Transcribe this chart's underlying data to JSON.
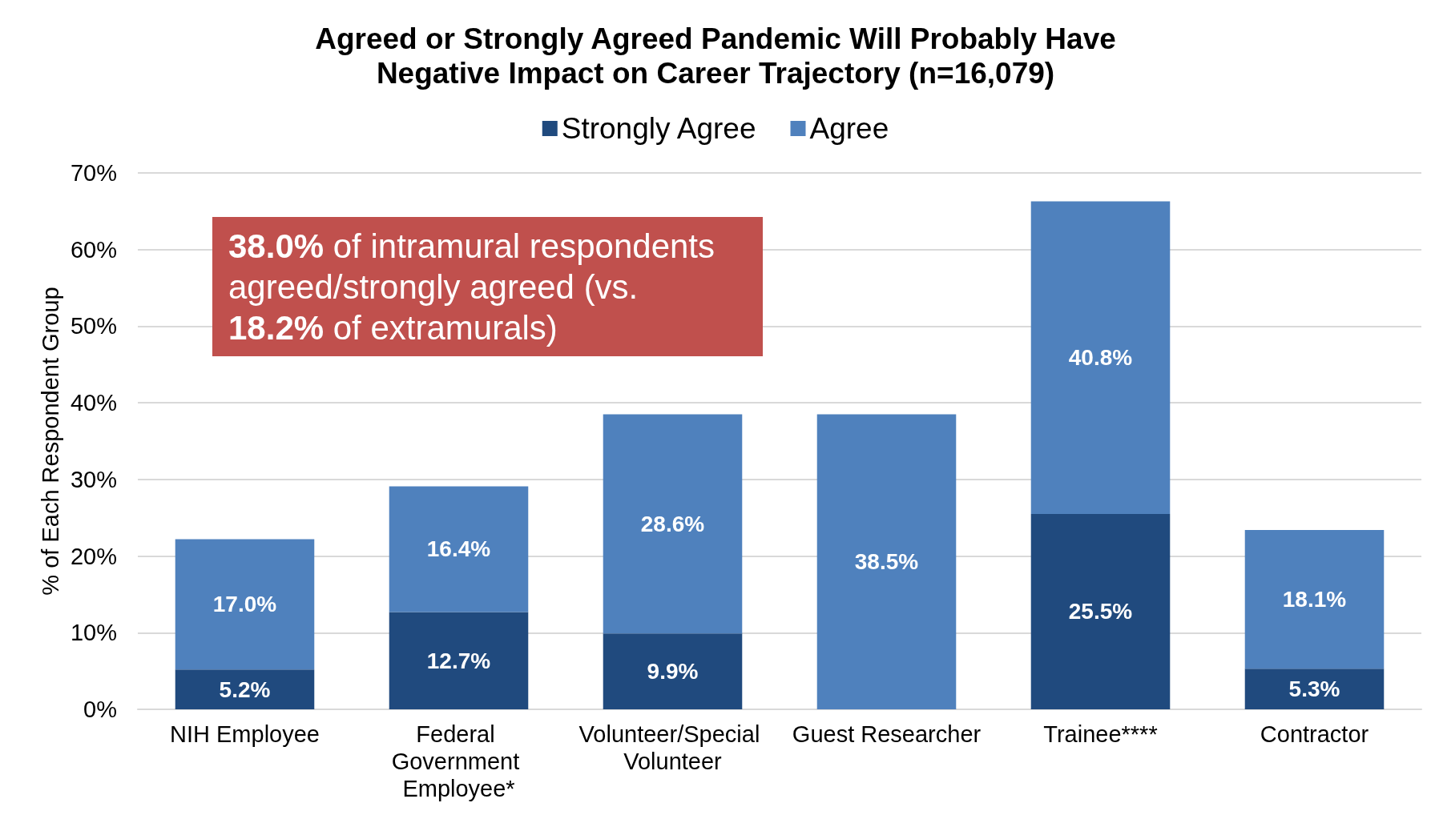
{
  "chart_data": {
    "type": "bar",
    "title": "Agreed or Strongly Agreed Pandemic Will Probably Have Negative Impact on Career Trajectory (n=16,079)",
    "ylabel": "% of Each Respondent Group",
    "categories": [
      "NIH Employee",
      "Federal Government Employee*",
      "Volunteer/Special Volunteer",
      "Guest Researcher",
      "Trainee****",
      "Contractor"
    ],
    "series": [
      {
        "name": "Strongly Agree",
        "color": "#204a7e",
        "values": [
          5.2,
          12.7,
          9.9,
          null,
          25.5,
          5.3
        ],
        "value_labels": [
          "5.2%",
          "12.7%",
          "9.9%",
          null,
          "25.5%",
          "5.3%"
        ]
      },
      {
        "name": "Agree",
        "color": "#4f81bd",
        "values": [
          17.0,
          16.4,
          28.6,
          38.5,
          40.8,
          18.1
        ],
        "value_labels": [
          "17.0%",
          "16.4%",
          "28.6%",
          "38.5%",
          "40.8%",
          "18.1%"
        ]
      }
    ],
    "stacked": true,
    "ylim": [
      0,
      70
    ],
    "yticks": [
      {
        "value": 0,
        "label": "0%"
      },
      {
        "value": 10,
        "label": "10%"
      },
      {
        "value": 20,
        "label": "20%"
      },
      {
        "value": 30,
        "label": "30%"
      },
      {
        "value": 40,
        "label": "40%"
      },
      {
        "value": 50,
        "label": "50%"
      },
      {
        "value": 60,
        "label": "60%"
      },
      {
        "value": 70,
        "label": "70%"
      }
    ],
    "grid": "y",
    "legend": "top",
    "annotations": [
      "38.0% of intramural respondents agreed/strongly agreed (vs. 18.2% of extramurals)"
    ]
  }
}
